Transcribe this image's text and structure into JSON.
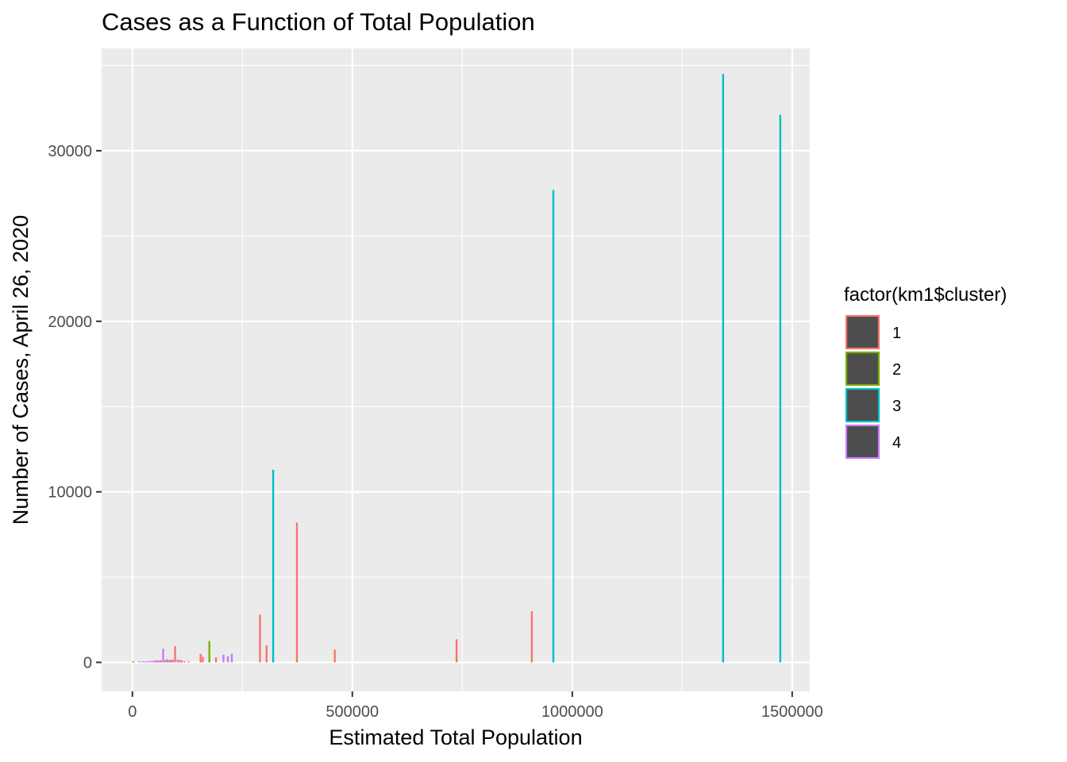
{
  "chart_data": {
    "type": "bar",
    "title": "Cases as a Function of Total Population",
    "xlabel": "Estimated Total Population",
    "ylabel": "Number of Cases, April 26, 2020",
    "xlim": [
      -70000,
      1540000
    ],
    "ylim": [
      -1700,
      36000
    ],
    "x_ticks": [
      0,
      500000,
      1000000,
      1500000
    ],
    "x_tick_labels": [
      "0",
      "500000",
      "1000000",
      "1500000"
    ],
    "y_ticks": [
      0,
      10000,
      20000,
      30000
    ],
    "y_tick_labels": [
      "0",
      "10000",
      "20000",
      "30000"
    ],
    "grid": true,
    "legend": {
      "title": "factor(km1$cluster)",
      "position": "right",
      "entries": [
        {
          "label": "1",
          "color": "#F8766D"
        },
        {
          "label": "2",
          "color": "#7CAE00"
        },
        {
          "label": "3",
          "color": "#00BFC4"
        },
        {
          "label": "4",
          "color": "#C77CFF"
        }
      ]
    },
    "series": [
      {
        "name": "1",
        "color": "#F8766D",
        "points": [
          [
            51000,
            60
          ],
          [
            58000,
            90
          ],
          [
            65000,
            120
          ],
          [
            72000,
            100
          ],
          [
            80000,
            180
          ],
          [
            88000,
            150
          ],
          [
            97000,
            950
          ],
          [
            103000,
            160
          ],
          [
            112000,
            120
          ],
          [
            155000,
            500
          ],
          [
            160000,
            320
          ],
          [
            190000,
            300
          ],
          [
            290000,
            2800
          ],
          [
            305000,
            1000
          ],
          [
            374000,
            8200
          ],
          [
            460000,
            750
          ],
          [
            737000,
            1350
          ],
          [
            908000,
            3000
          ]
        ]
      },
      {
        "name": "2",
        "color": "#7CAE00",
        "points": [
          [
            2000,
            60
          ],
          [
            175000,
            1250
          ]
        ]
      },
      {
        "name": "3",
        "color": "#00BFC4",
        "points": [
          [
            320000,
            11300
          ],
          [
            957000,
            27700
          ],
          [
            1343000,
            34500
          ],
          [
            1473000,
            32100
          ]
        ]
      },
      {
        "name": "4",
        "color": "#C77CFF",
        "points": [
          [
            16000,
            30
          ],
          [
            24000,
            50
          ],
          [
            30000,
            70
          ],
          [
            36000,
            60
          ],
          [
            42000,
            90
          ],
          [
            48000,
            110
          ],
          [
            55000,
            130
          ],
          [
            62000,
            100
          ],
          [
            70000,
            800
          ],
          [
            76000,
            150
          ],
          [
            84000,
            120
          ],
          [
            92000,
            160
          ],
          [
            108000,
            140
          ],
          [
            118000,
            80
          ],
          [
            128000,
            60
          ],
          [
            207000,
            450
          ],
          [
            217000,
            350
          ],
          [
            226000,
            500
          ]
        ]
      }
    ]
  }
}
